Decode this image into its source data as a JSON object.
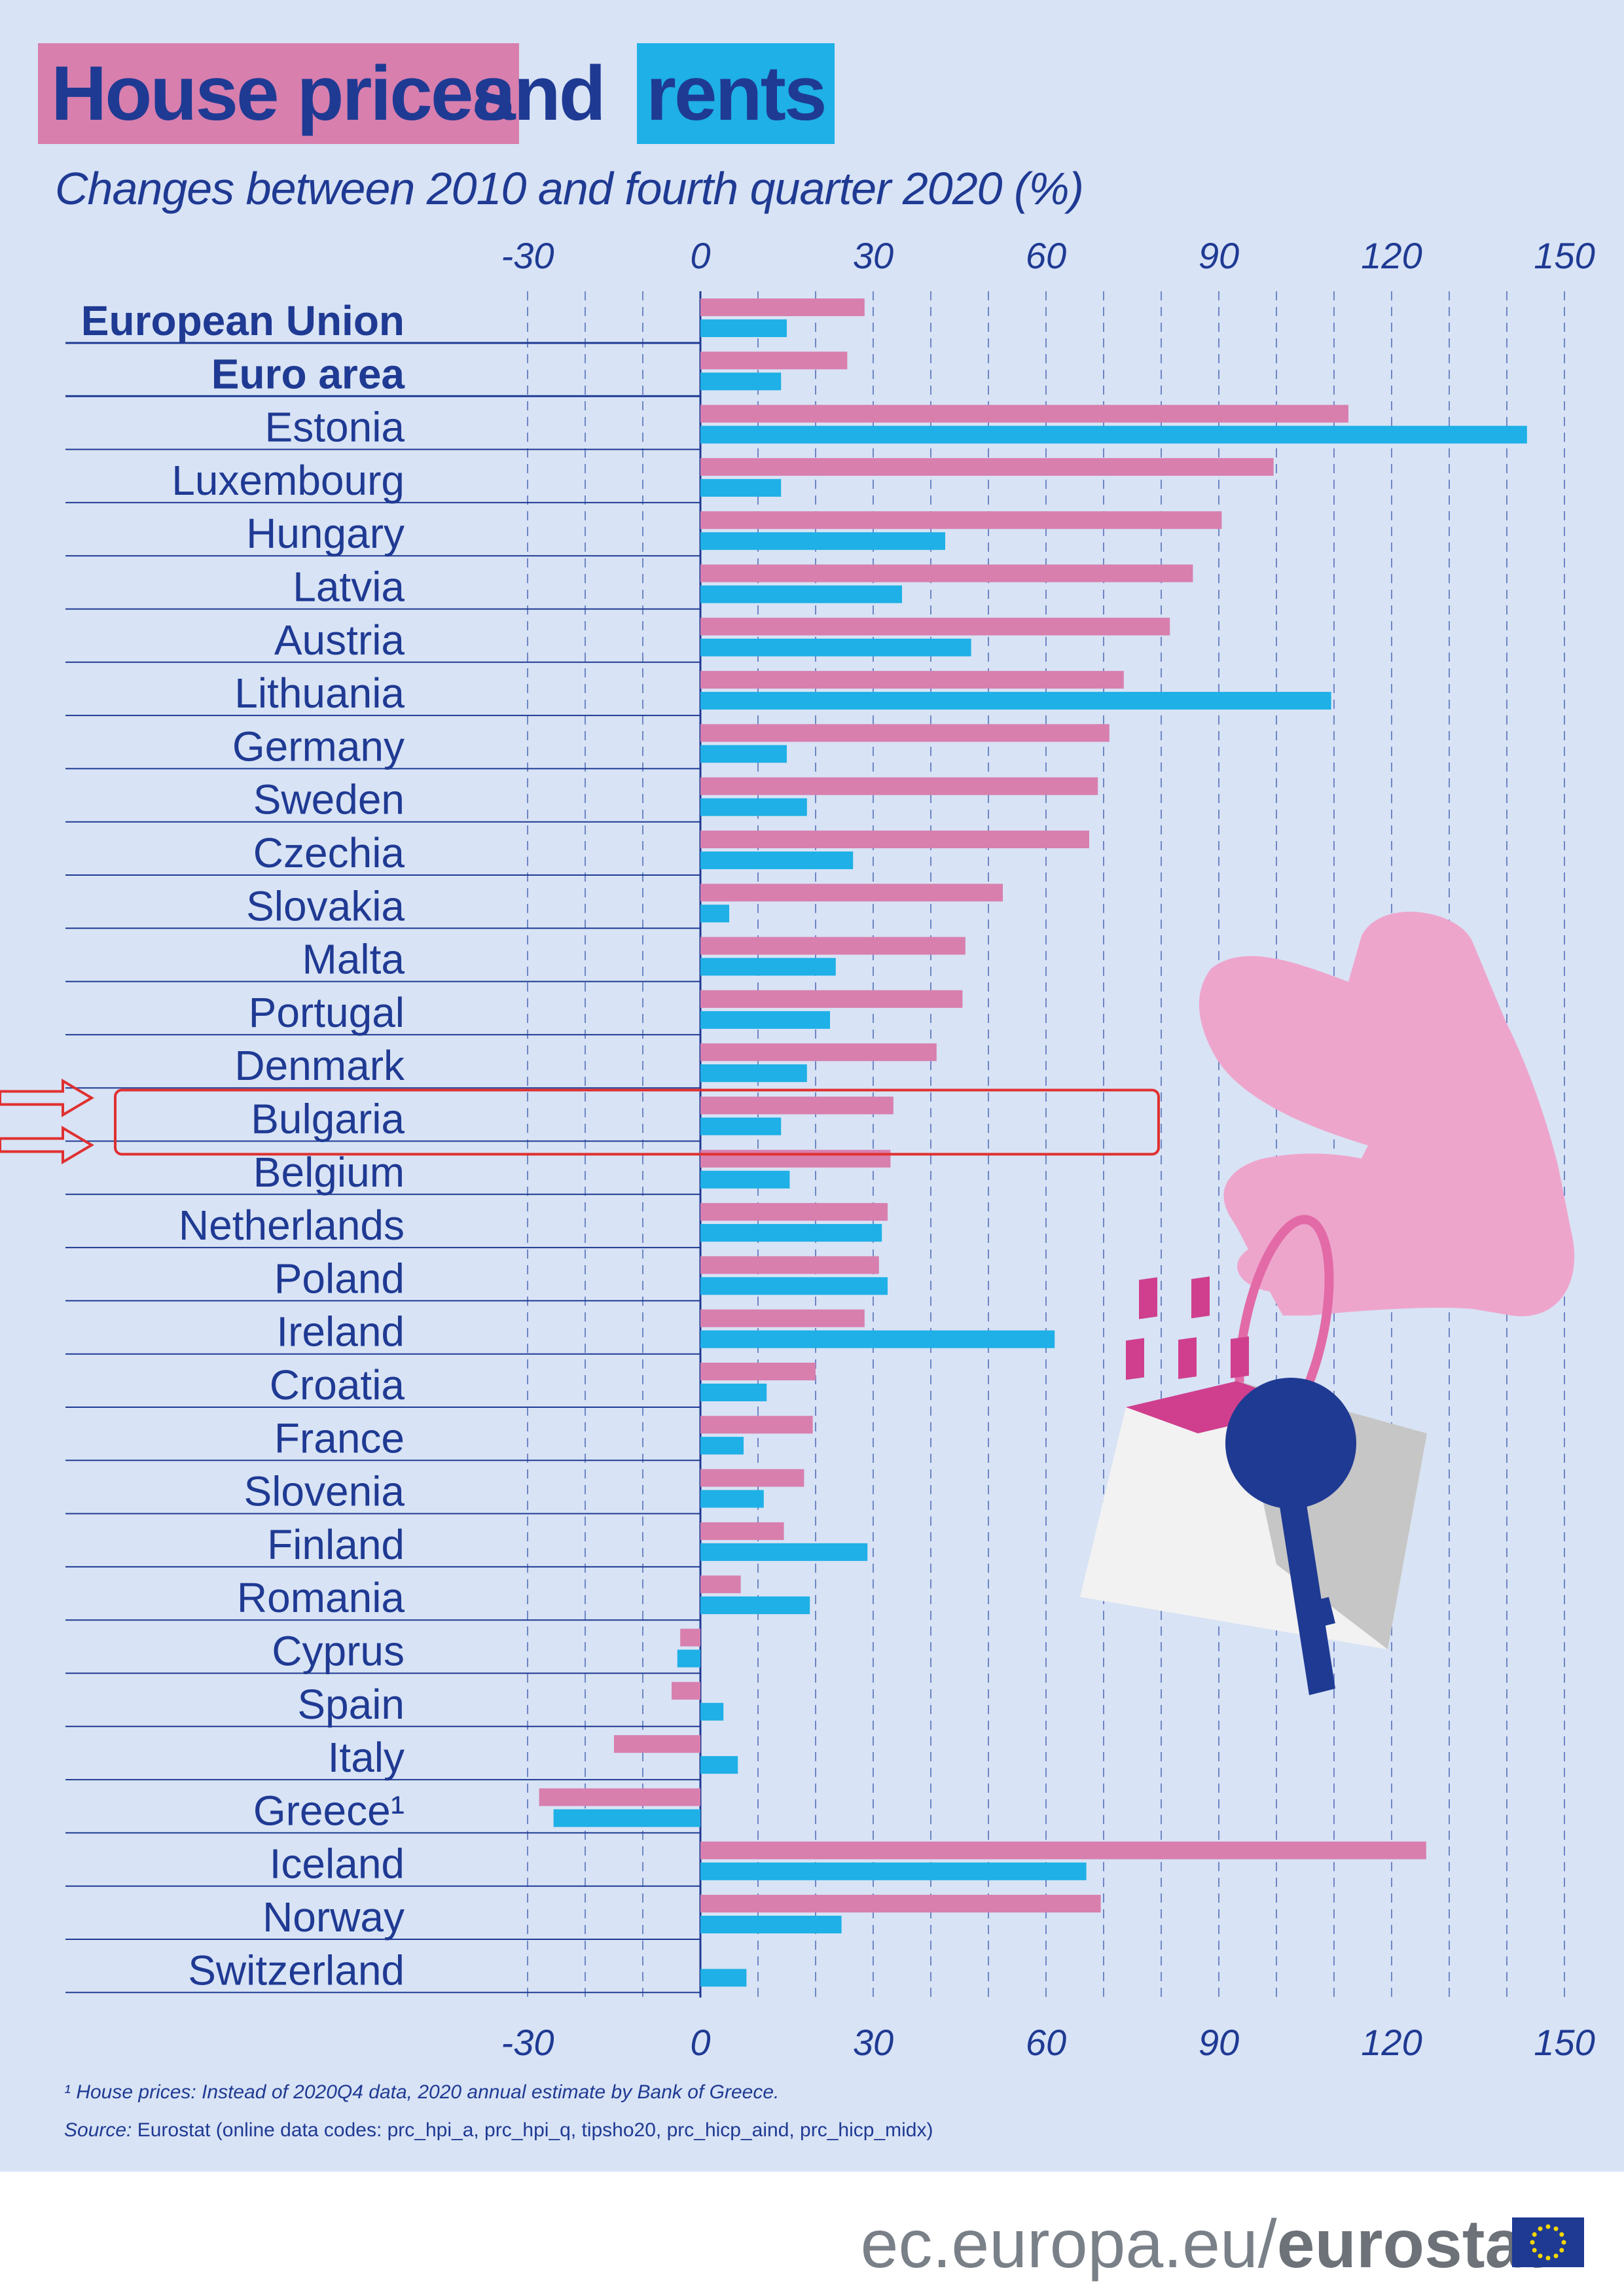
{
  "title": {
    "part1": "House prices",
    "part2": "and",
    "part3": "rents"
  },
  "subtitle": "Changes between 2010 and fourth quarter 2020 (%)",
  "colors": {
    "house_prices": "#d87fae",
    "rents": "#1eb0e6",
    "text": "#1f3a93",
    "background": "#d8e3f5",
    "highlight": "#e03030"
  },
  "chart_data": {
    "type": "bar",
    "orientation": "horizontal",
    "xlim": [
      -30,
      150
    ],
    "xticks": [
      -30,
      0,
      30,
      60,
      90,
      120,
      150
    ],
    "grid": "dashed vertical",
    "categories": [
      "European Union",
      "Euro area",
      "Estonia",
      "Luxembourg",
      "Hungary",
      "Latvia",
      "Austria",
      "Lithuania",
      "Germany",
      "Sweden",
      "Czechia",
      "Slovakia",
      "Malta",
      "Portugal",
      "Denmark",
      "Bulgaria",
      "Belgium",
      "Netherlands",
      "Poland",
      "Ireland",
      "Croatia",
      "France",
      "Slovenia",
      "Finland",
      "Romania",
      "Cyprus",
      "Spain",
      "Italy",
      "Greece¹",
      "Iceland",
      "Norway",
      "Switzerland"
    ],
    "bold_categories": [
      "European Union",
      "Euro area"
    ],
    "highlighted_category": "Bulgaria",
    "series": [
      {
        "values": [
          28.5,
          25.5,
          112.5,
          99.5,
          90.5,
          85.5,
          81.5,
          73.5,
          71,
          69,
          67.5,
          52.5,
          46,
          45.5,
          41,
          33.5,
          33,
          32.5,
          31,
          28.5,
          20,
          19.5,
          18,
          14.5,
          7,
          -3.5,
          -5,
          -15,
          -28,
          126,
          69.5,
          null
        ]
      },
      {
        "values": [
          15,
          14,
          143.5,
          14,
          42.5,
          35,
          47,
          109.5,
          15,
          18.5,
          26.5,
          5,
          23.5,
          22.5,
          18.5,
          14,
          15.5,
          31.5,
          32.5,
          61.5,
          11.5,
          7.5,
          11,
          29,
          19,
          -4,
          4,
          6.5,
          -25.5,
          67,
          24.5,
          8
        ]
      }
    ]
  },
  "notes": {
    "footnote": "¹ House prices: Instead of 2020Q4 data, 2020 annual estimate by Bank of Greece.",
    "source_label": "Source:",
    "source_text": " Eurostat (online data codes: prc_hpi_a, prc_hpi_q, tipsho20, prc_hicp_aind, prc_hicp_midx)"
  },
  "footer": {
    "url_plain": "ec.europa.eu/",
    "url_bold": "eurostat"
  }
}
